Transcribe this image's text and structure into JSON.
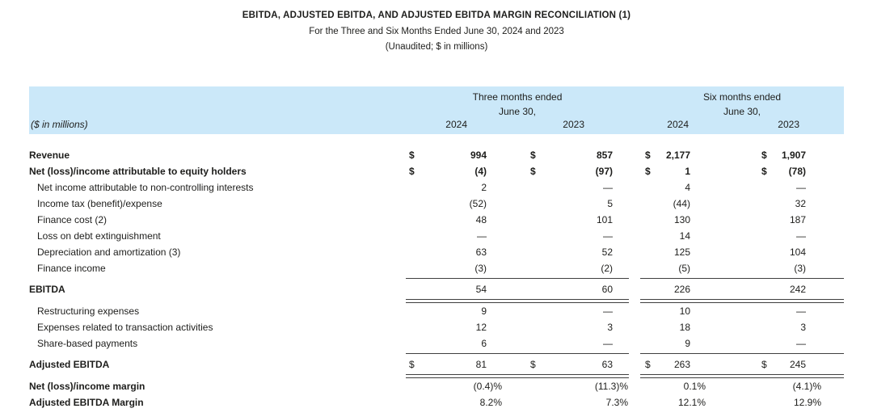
{
  "header": {
    "title": "EBITDA, ADJUSTED EBITDA, AND ADJUSTED EBITDA MARGIN RECONCILIATION (1)",
    "subtitle": "For the Three and Six Months Ended June 30, 2024 and 2023",
    "note": "(Unaudited; $ in millions)"
  },
  "table": {
    "units_label": "($ in millions)",
    "currency_symbol": "$",
    "band_color": "#cbe8f9",
    "rule_color": "#3f3f3f",
    "col_groups": [
      {
        "line1": "Three months ended",
        "line2": "June 30,",
        "years": [
          "2024",
          "2023"
        ]
      },
      {
        "line1": "Six months ended",
        "line2": "June 30,",
        "years": [
          "2024",
          "2023"
        ]
      }
    ],
    "rows": [
      {
        "type": "row",
        "label": "Revenue",
        "bold": true,
        "dollar": true,
        "bold_values": true,
        "values": [
          "994",
          "857",
          "2,177",
          "1,907"
        ]
      },
      {
        "type": "row",
        "label": "Net (loss)/income attributable to equity holders",
        "bold": true,
        "dollar": true,
        "bold_values": true,
        "values": [
          "(4)",
          "(97)",
          "1",
          "(78)"
        ]
      },
      {
        "type": "row",
        "label": "Net income attributable to non-controlling interests",
        "indent": true,
        "values": [
          "2",
          "—",
          "4",
          "—"
        ]
      },
      {
        "type": "row",
        "label": "Income tax (benefit)/expense",
        "indent": true,
        "values": [
          "(52)",
          "5",
          "(44)",
          "32"
        ]
      },
      {
        "type": "row",
        "label": "Finance cost (2)",
        "indent": true,
        "values": [
          "48",
          "101",
          "130",
          "187"
        ]
      },
      {
        "type": "row",
        "label": "Loss on debt extinguishment",
        "indent": true,
        "values": [
          "—",
          "—",
          "14",
          "—"
        ]
      },
      {
        "type": "row",
        "label": "Depreciation and amortization (3)",
        "indent": true,
        "values": [
          "63",
          "52",
          "125",
          "104"
        ]
      },
      {
        "type": "row",
        "label": "Finance income",
        "indent": true,
        "values": [
          "(3)",
          "(2)",
          "(5)",
          "(3)"
        ]
      },
      {
        "type": "rule",
        "style": "single"
      },
      {
        "type": "row",
        "label": "EBITDA",
        "bold": true,
        "values": [
          "54",
          "60",
          "226",
          "242"
        ]
      },
      {
        "type": "rule",
        "style": "double"
      },
      {
        "type": "row",
        "label": "Restructuring expenses",
        "indent": true,
        "values": [
          "9",
          "—",
          "10",
          "—"
        ]
      },
      {
        "type": "row",
        "label": "Expenses related to transaction activities",
        "indent": true,
        "values": [
          "12",
          "3",
          "18",
          "3"
        ]
      },
      {
        "type": "row",
        "label": "Share-based payments",
        "indent": true,
        "values": [
          "6",
          "—",
          "9",
          "—"
        ]
      },
      {
        "type": "rule",
        "style": "single"
      },
      {
        "type": "row",
        "label": "Adjusted EBITDA",
        "bold": true,
        "dollar": true,
        "values": [
          "81",
          "63",
          "263",
          "245"
        ]
      },
      {
        "type": "rule",
        "style": "double"
      },
      {
        "type": "row",
        "label": "Net (loss)/income margin",
        "bold": true,
        "pct": true,
        "values": [
          "(0.4)%",
          "(11.3)%",
          "0.1%",
          "(4.1)%"
        ]
      },
      {
        "type": "row",
        "label": "Adjusted EBITDA Margin",
        "bold": true,
        "pct": true,
        "values": [
          "8.2%",
          "7.3%",
          "12.1%",
          "12.9%"
        ]
      }
    ]
  }
}
